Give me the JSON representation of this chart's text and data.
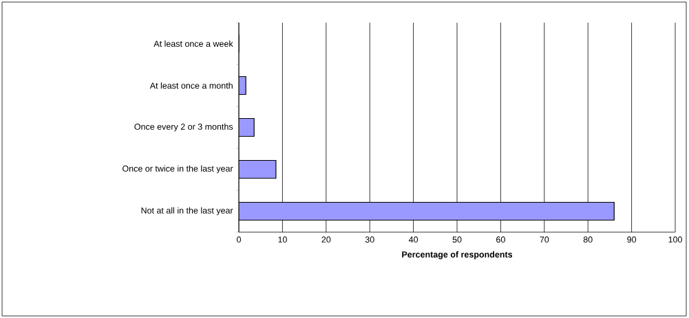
{
  "chart_data": {
    "type": "bar",
    "orientation": "horizontal",
    "xlabel": "Percentage of respondents",
    "categories": [
      "At least once a week",
      "At least once a month",
      "Once every 2 or 3 months",
      "Once or twice in the last year",
      "Not at all in the last year"
    ],
    "values": [
      0,
      1.6,
      3.5,
      8.5,
      86
    ],
    "color": "#9999ff",
    "xlim": [
      0,
      100
    ],
    "xticks": [
      0,
      10,
      20,
      30,
      40,
      50,
      60,
      70,
      80,
      90,
      100
    ],
    "grid": "x"
  }
}
